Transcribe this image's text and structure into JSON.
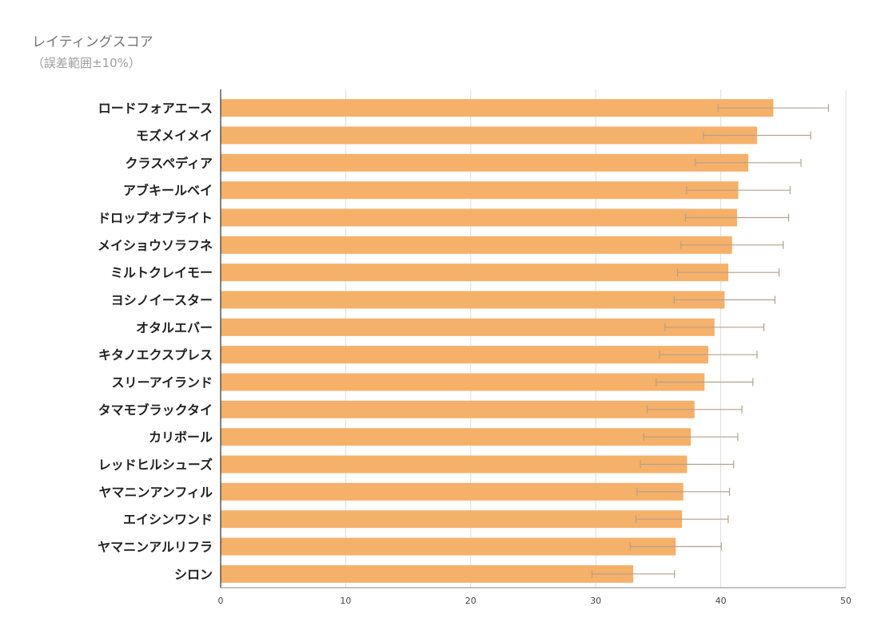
{
  "chart_data": {
    "type": "bar",
    "orientation": "horizontal",
    "title": "レイティングスコア",
    "subtitle": "（誤差範囲±10%）",
    "xlabel": "",
    "ylabel": "",
    "xlim": [
      0,
      50
    ],
    "ticks": [
      0,
      10,
      20,
      30,
      40,
      50
    ],
    "grid": true,
    "legend": "none",
    "error_bars": "±10%",
    "colors": {
      "bar": "#f5b06a",
      "error_bar": "#b5a08a",
      "grid": "#dddddd",
      "axis": "#333333"
    },
    "categories": [
      "ロードフォアエース",
      "モズメイメイ",
      "クラスペディア",
      "アブキールベイ",
      "ドロップオブライト",
      "メイショウソラフネ",
      "ミルトクレイモー",
      "ヨシノイースター",
      "オタルエバー",
      "キタノエクスプレス",
      "スリーアイランド",
      "タマモブラックタイ",
      "カリボール",
      "レッドヒルシューズ",
      "ヤマニンアンフィル",
      "エイシンワンド",
      "ヤマニンアルリフラ",
      "シロン"
    ],
    "values": [
      44.2,
      42.9,
      42.2,
      41.4,
      41.3,
      40.9,
      40.6,
      40.3,
      39.5,
      39.0,
      38.7,
      37.9,
      37.6,
      37.3,
      37.0,
      36.9,
      36.4,
      33.0
    ]
  }
}
